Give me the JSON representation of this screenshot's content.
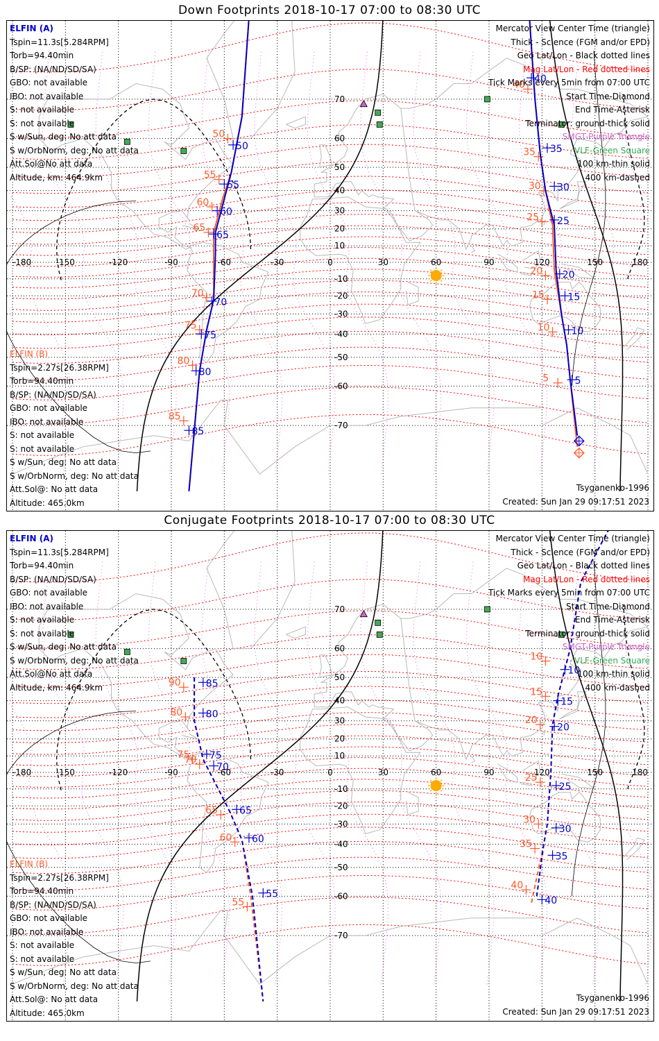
{
  "panels": [
    {
      "id": "down",
      "title": "Down Footprints 2018-10-17 07:00 to 08:30 UTC",
      "mode": "down",
      "info_a": [
        "ELFIN (A)",
        "Tspin=11.3s[5.284RPM]",
        "Torb=94.40min",
        "B/SP: (NA/ND/SD/SA)",
        "GBO: not available",
        "IBO: not available",
        "S: not available",
        "S: not available",
        "S w/Sun, deg: No att data",
        "S w/OrbNorm, deg: No att data",
        "Att.Sol@No att data",
        "Altitude, km: 464.9km"
      ],
      "info_b": [
        "ELFIN (B)",
        "Tspin=2.27s[26.38RPM]",
        "Torb=94.40min",
        "B/SP: (NA/ND/SD/SA)",
        "GBO: not available",
        "IBO: not available",
        "S: not available",
        "S: not available",
        "S w/Sun, deg: No att data",
        "S w/OrbNorm, deg: No att data",
        "Att.Sol@: No att data",
        "Altitude: 465.0km"
      ],
      "model": "Tsyganenko-1996",
      "created": "Created: Sun Jan 29 09:17:51 2023"
    },
    {
      "id": "conj",
      "title": "Conjugate Footprints 2018-10-17 07:00 to 08:30 UTC",
      "mode": "conj",
      "info_a": [
        "ELFIN (A)",
        "Tspin=11.3s[5.284RPM]",
        "Torb=94.40min",
        "B/SP: (NA/ND/SD/SA)",
        "GBO: not available",
        "IBO: not available",
        "S: not available",
        "S: not available",
        "S w/Sun, deg: No att data",
        "S w/OrbNorm, deg: No att data",
        "Att.Sol@No att data",
        "Altitude, km: 464.9km"
      ],
      "info_b": [
        "ELFIN (B)",
        "Tspin=2.27s[26.38RPM]",
        "Torb=94.40min",
        "B/SP: (NA/ND/SD/SA)",
        "GBO: not available",
        "IBO: not available",
        "S: not available",
        "S: not available",
        "S w/Sun, deg: No att data",
        "S w/OrbNorm, deg: No att data",
        "Att.Sol@: No att data",
        "Altitude: 465.0km"
      ],
      "model": "Tsyganenko-1996",
      "created": "Created: Sun Jan 29 09:17:51 2023"
    }
  ],
  "legend": [
    {
      "text": "Mercator View Center Time (triangle)",
      "color": "#000000"
    },
    {
      "text": "Thick - Science (FGM and/or EPD)",
      "color": "#000000"
    },
    {
      "text": "Geo Lat/Lon - Black dotted lines",
      "color": "#000000"
    },
    {
      "text": "Mag Lat/Lon - Red dotted lines",
      "color": "#ff0000"
    },
    {
      "text": "Tick Marks every 5min from 07:00 UTC",
      "color": "#000000"
    },
    {
      "text": "Start Time-Diamond",
      "color": "#000000"
    },
    {
      "text": "End Time-Asterisk",
      "color": "#000000"
    },
    {
      "text": "Terminator: ground-thick solid",
      "color": "#000000"
    },
    {
      "text": "SMGT-Purple Triangle",
      "color": "#cc66cc"
    },
    {
      "text": "VLF-Green Square",
      "color": "#33aa55"
    },
    {
      "text": "100 km-thin solid",
      "color": "#000000"
    },
    {
      "text": "400 km-dashed",
      "color": "#000000"
    }
  ],
  "axes": {
    "lon_ticks": [
      -180,
      -150,
      -120,
      -90,
      -60,
      -30,
      0,
      30,
      60,
      90,
      120,
      150,
      180
    ],
    "lat_ticks": [
      70,
      60,
      50,
      40,
      30,
      20,
      10,
      0,
      -10,
      -20,
      -30,
      -40,
      -50,
      -60,
      -70
    ],
    "lat_range": [
      -80,
      80
    ]
  },
  "colors": {
    "sat_a": "#0000cc",
    "sat_b": "#ff5a2a",
    "mag_grid": "#ff0000",
    "mag_lon": "#dd66dd",
    "sun": "#ffaa00",
    "vlf": "#44aa55",
    "smgt": "#cc66cc",
    "coast": "#b8b8b8"
  },
  "tracks": {
    "down": {
      "a1": {
        "points": [
          [
            -44,
            85
          ],
          [
            -50,
            66
          ],
          [
            -56,
            48
          ],
          [
            -60,
            36
          ],
          [
            -65,
            18
          ],
          [
            -65,
            5
          ],
          [
            -66,
            -22
          ],
          [
            -70,
            -38
          ],
          [
            -74,
            -55
          ],
          [
            -80,
            -80
          ]
        ],
        "labels": [
          [
            "50",
            -55,
            58
          ],
          [
            "55",
            -60,
            43
          ],
          [
            "60",
            -64,
            30
          ],
          [
            "65",
            -66,
            17
          ],
          [
            "70",
            -67,
            -23
          ],
          [
            "75",
            -73,
            -40
          ],
          [
            "80",
            -76,
            -55
          ],
          [
            "85",
            -80,
            -71
          ]
        ]
      },
      "b1": {
        "points": [
          [
            -44,
            85
          ],
          [
            -50,
            66
          ],
          [
            -56,
            48
          ],
          [
            -61,
            36
          ],
          [
            -66,
            18
          ],
          [
            -66,
            5
          ],
          [
            -66,
            -22
          ],
          [
            -70,
            -38
          ],
          [
            -74,
            -55
          ],
          [
            -80,
            -80
          ]
        ],
        "labels": [
          [
            "50",
            -58,
            60
          ],
          [
            "55",
            -63,
            45
          ],
          [
            "60",
            -67,
            32
          ],
          [
            "65",
            -69,
            18
          ],
          [
            "70",
            -70,
            -21
          ],
          [
            "75",
            -74,
            -38
          ],
          [
            "80",
            -78,
            -53
          ],
          [
            "85",
            -83,
            -69
          ]
        ]
      },
      "a2": {
        "points": [
          [
            111,
            85
          ],
          [
            116,
            70
          ],
          [
            119,
            55
          ],
          [
            122,
            40
          ],
          [
            127,
            22
          ],
          [
            128,
            -5
          ],
          [
            131,
            -30
          ],
          [
            134,
            -45
          ],
          [
            136,
            -58
          ],
          [
            140,
            -72
          ]
        ],
        "labels": [
          [
            "40",
            114,
            74
          ],
          [
            "35",
            123,
            57
          ],
          [
            "30",
            127,
            42
          ],
          [
            "25",
            127,
            25
          ],
          [
            "20",
            130,
            -7
          ],
          [
            "15",
            133,
            -20
          ],
          [
            "10",
            135,
            -38
          ],
          [
            "5",
            137,
            -58
          ]
        ],
        "start": [
          141,
          -73
        ]
      },
      "b2": {
        "points": [
          [
            111,
            85
          ],
          [
            116,
            70
          ],
          [
            119,
            55
          ],
          [
            122,
            40
          ],
          [
            126,
            22
          ],
          [
            127,
            -5
          ],
          [
            131,
            -30
          ],
          [
            134,
            -45
          ],
          [
            136,
            -58
          ],
          [
            140,
            -74
          ]
        ],
        "labels": [
          [
            "40",
            112,
            72
          ],
          [
            "35",
            118,
            54
          ],
          [
            "30",
            121,
            40
          ],
          [
            "25",
            120,
            24
          ],
          [
            "20",
            122,
            -8
          ],
          [
            "15",
            123,
            -22
          ],
          [
            "10",
            126,
            -39
          ],
          [
            "5",
            129,
            -59
          ]
        ],
        "start": [
          141,
          -75
        ]
      }
    },
    "conj": {
      "a1": {
        "points": [
          [
            -77,
            50
          ],
          [
            -77,
            30
          ],
          [
            -72,
            8
          ],
          [
            -57,
            -23
          ],
          [
            -50,
            -38
          ],
          [
            -44,
            -60
          ],
          [
            -38,
            -80
          ]
        ],
        "labels": [
          [
            "85",
            -72,
            48
          ],
          [
            "80",
            -72,
            34
          ],
          [
            "75",
            -70,
            11
          ],
          [
            "70",
            -66,
            4
          ],
          [
            "65",
            -53,
            -22
          ],
          [
            "60",
            -46,
            -37
          ],
          [
            "55",
            -38,
            -59
          ]
        ]
      },
      "b1": {
        "points": [
          [
            -77,
            50
          ],
          [
            -77,
            30
          ],
          [
            -72,
            8
          ],
          [
            -57,
            -23
          ],
          [
            -50,
            -38
          ],
          [
            -45,
            -60
          ],
          [
            -38,
            -80
          ]
        ],
        "labels": [
          [
            "90",
            -83,
            46
          ],
          [
            "80",
            -82,
            32
          ],
          [
            "75",
            -78,
            8
          ],
          [
            "70",
            -74,
            5
          ],
          [
            "65",
            -62,
            -25
          ],
          [
            "60",
            -54,
            -39
          ],
          [
            "55",
            -47,
            -63
          ]
        ]
      },
      "a2": {
        "points": [
          [
            160,
            82
          ],
          [
            142,
            75
          ],
          [
            136,
            60
          ],
          [
            129,
            42
          ],
          [
            126,
            28
          ],
          [
            125,
            0
          ],
          [
            123,
            -30
          ],
          [
            121,
            -40
          ],
          [
            117,
            -60
          ]
        ],
        "labels": [
          [
            "10",
            133,
            53
          ],
          [
            "15",
            129,
            40
          ],
          [
            "20",
            127,
            27
          ],
          [
            "25",
            128,
            -8
          ],
          [
            "30",
            128,
            -32
          ],
          [
            "35",
            126,
            -45
          ],
          [
            "40",
            120,
            -61
          ]
        ]
      },
      "b2": {
        "points": [
          [
            160,
            82
          ],
          [
            142,
            75
          ],
          [
            136,
            60
          ],
          [
            129,
            42
          ],
          [
            126,
            28
          ],
          [
            125,
            0
          ],
          [
            123,
            -30
          ],
          [
            121,
            -40
          ],
          [
            114,
            -62
          ]
        ],
        "labels": [
          [
            "10",
            122,
            56
          ],
          [
            "15",
            122,
            42
          ],
          [
            "20",
            119,
            28
          ],
          [
            "25",
            119,
            -6
          ],
          [
            "30",
            118,
            -30
          ],
          [
            "35",
            116,
            -42
          ],
          [
            "40",
            111,
            -58
          ]
        ]
      }
    }
  },
  "markers": {
    "sun": [
      60,
      -8
    ],
    "smgt": [
      [
        17,
        85
      ],
      [
        19,
        69
      ]
    ],
    "vlf": [
      [
        -147,
        64
      ],
      [
        -115,
        59
      ],
      [
        -83,
        56
      ],
      [
        27,
        67
      ],
      [
        28,
        64
      ],
      [
        89,
        70
      ],
      [
        131,
        64
      ]
    ]
  }
}
